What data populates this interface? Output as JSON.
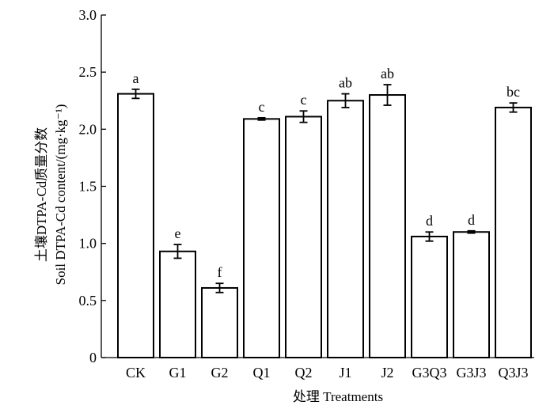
{
  "chart_data": {
    "type": "bar",
    "categories": [
      "CK",
      "G1",
      "G2",
      "Q1",
      "Q2",
      "J1",
      "J2",
      "G3Q3",
      "G3J3",
      "Q3J3"
    ],
    "values": [
      2.31,
      0.93,
      0.61,
      2.09,
      2.11,
      2.25,
      2.3,
      1.06,
      1.1,
      2.19
    ],
    "errors": [
      0.04,
      0.06,
      0.04,
      0.01,
      0.05,
      0.06,
      0.09,
      0.04,
      0.01,
      0.04
    ],
    "significance_letters": [
      "a",
      "e",
      "f",
      "c",
      "c",
      "ab",
      "ab",
      "d",
      "d",
      "bc"
    ],
    "xlabel": "处理 Treatments",
    "ylabel_line1": "土壤DTPA-Cd质量分数",
    "ylabel_line2": "Soil DTPA-Cd content/(mg·kg⁻¹)",
    "ylim": [
      0,
      3.0
    ],
    "yticks": [
      "0",
      "0.5",
      "1.0",
      "1.5",
      "2.0",
      "2.5",
      "3.0"
    ],
    "grid": false,
    "bar_color": "#ffffff",
    "edge_color": "#000000"
  }
}
